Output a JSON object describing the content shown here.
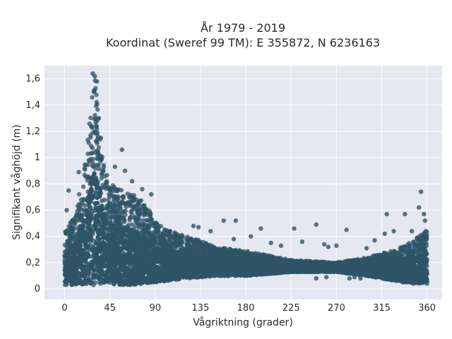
{
  "chart_data": {
    "type": "scatter",
    "title_line1": "År 1979 - 2019",
    "title_line2": "Koordinat (Sweref 99 TM): E 355872, N 6236163",
    "xlabel": "Vågriktning (grader)",
    "ylabel": "Signifikant våghöjd (m)",
    "xlim": [
      -20,
      375
    ],
    "ylim": [
      -0.08,
      1.7
    ],
    "xticks": [
      0,
      45,
      90,
      135,
      180,
      225,
      270,
      315,
      360
    ],
    "xtick_labels": [
      "0",
      "45",
      "90",
      "135",
      "180",
      "225",
      "270",
      "315",
      "360"
    ],
    "yticks": [
      0,
      0.2,
      0.4,
      0.6,
      0.8,
      1,
      1.2,
      1.4,
      1.6
    ],
    "ytick_labels": [
      "0",
      "0,2",
      "0,4",
      "0,6",
      "0,8",
      "1",
      "1,2",
      "1,4",
      "1,6"
    ],
    "grid": true,
    "legend": "none",
    "marker_color": "#2f5467",
    "plot_bg": "#e5e8f0",
    "envelope": {
      "description": "dense cloud of points (min/max per direction)",
      "x": [
        0,
        10,
        20,
        25,
        28,
        30,
        32,
        35,
        40,
        45,
        50,
        60,
        70,
        80,
        90,
        100,
        110,
        120,
        135,
        150,
        180,
        225,
        270,
        300,
        315,
        330,
        345,
        355,
        360
      ],
      "low": [
        0.03,
        0.03,
        0.03,
        0.03,
        0.03,
        0.03,
        0.03,
        0.03,
        0.03,
        0.03,
        0.03,
        0.03,
        0.03,
        0.04,
        0.05,
        0.06,
        0.07,
        0.08,
        0.09,
        0.1,
        0.1,
        0.13,
        0.13,
        0.1,
        0.08,
        0.06,
        0.04,
        0.04,
        0.04
      ],
      "high": [
        0.45,
        0.55,
        0.95,
        1.35,
        1.55,
        1.62,
        1.45,
        1.2,
        0.9,
        0.82,
        0.78,
        0.74,
        0.72,
        0.65,
        0.52,
        0.45,
        0.43,
        0.4,
        0.37,
        0.32,
        0.29,
        0.22,
        0.2,
        0.24,
        0.27,
        0.3,
        0.36,
        0.42,
        0.45
      ]
    },
    "outliers": [
      {
        "x": 28,
        "y": 1.64
      },
      {
        "x": 30,
        "y": 1.62
      },
      {
        "x": 32,
        "y": 1.58
      },
      {
        "x": 29,
        "y": 1.5
      },
      {
        "x": 34,
        "y": 1.3
      },
      {
        "x": 36,
        "y": 1.15
      },
      {
        "x": 57,
        "y": 1.06
      },
      {
        "x": 50,
        "y": 0.93
      },
      {
        "x": 60,
        "y": 0.9
      },
      {
        "x": 14,
        "y": 0.89
      },
      {
        "x": 67,
        "y": 0.82
      },
      {
        "x": 4,
        "y": 0.75
      },
      {
        "x": 77,
        "y": 0.76
      },
      {
        "x": 86,
        "y": 0.72
      },
      {
        "x": 2,
        "y": 0.6
      },
      {
        "x": 128,
        "y": 0.48
      },
      {
        "x": 133,
        "y": 0.47
      },
      {
        "x": 145,
        "y": 0.44
      },
      {
        "x": 158,
        "y": 0.52
      },
      {
        "x": 168,
        "y": 0.38
      },
      {
        "x": 170,
        "y": 0.52
      },
      {
        "x": 185,
        "y": 0.4
      },
      {
        "x": 195,
        "y": 0.46
      },
      {
        "x": 205,
        "y": 0.35
      },
      {
        "x": 215,
        "y": 0.33
      },
      {
        "x": 228,
        "y": 0.46
      },
      {
        "x": 250,
        "y": 0.49
      },
      {
        "x": 236,
        "y": 0.36
      },
      {
        "x": 258,
        "y": 0.34
      },
      {
        "x": 262,
        "y": 0.32
      },
      {
        "x": 280,
        "y": 0.45
      },
      {
        "x": 270,
        "y": 0.33
      },
      {
        "x": 300,
        "y": 0.31
      },
      {
        "x": 308,
        "y": 0.37
      },
      {
        "x": 320,
        "y": 0.57
      },
      {
        "x": 318,
        "y": 0.42
      },
      {
        "x": 327,
        "y": 0.44
      },
      {
        "x": 338,
        "y": 0.57
      },
      {
        "x": 345,
        "y": 0.44
      },
      {
        "x": 352,
        "y": 0.62
      },
      {
        "x": 354,
        "y": 0.74
      },
      {
        "x": 357,
        "y": 0.57
      },
      {
        "x": 358,
        "y": 0.52
      },
      {
        "x": 283,
        "y": 0.08
      },
      {
        "x": 288,
        "y": 0.09
      },
      {
        "x": 294,
        "y": 0.08
      },
      {
        "x": 250,
        "y": 0.08
      },
      {
        "x": 260,
        "y": 0.09
      }
    ]
  }
}
